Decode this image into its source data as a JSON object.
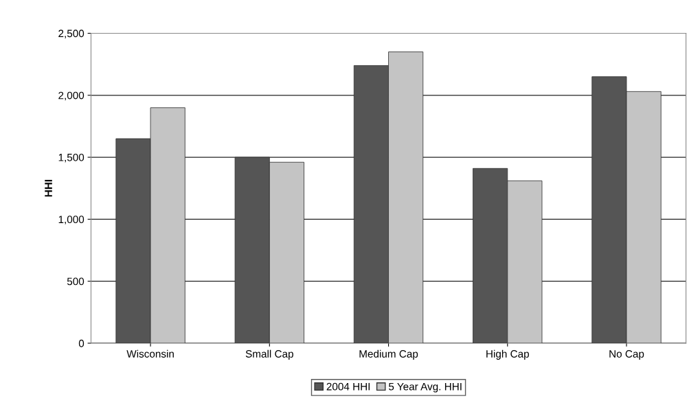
{
  "chart_data": {
    "type": "bar",
    "ylabel": "HHI",
    "categories": [
      "Wisconsin",
      "Small Cap",
      "Medium Cap",
      "High Cap",
      "No Cap"
    ],
    "series": [
      {
        "name": "2004 HHI",
        "color": "#555555",
        "values": [
          1650,
          1500,
          2240,
          1410,
          2150
        ]
      },
      {
        "name": "5 Year Avg. HHI",
        "color": "#c4c4c4",
        "values": [
          1900,
          1460,
          2350,
          1310,
          2030
        ]
      }
    ],
    "ylim": [
      0,
      2500
    ],
    "yticks": [
      {
        "value": 0,
        "label": "0"
      },
      {
        "value": 500,
        "label": "500"
      },
      {
        "value": 1000,
        "label": "1,000"
      },
      {
        "value": 1500,
        "label": "1,500"
      },
      {
        "value": 2000,
        "label": "2,000"
      },
      {
        "value": 2500,
        "label": "2,500"
      }
    ],
    "grid": "y",
    "legend": "bottom"
  }
}
